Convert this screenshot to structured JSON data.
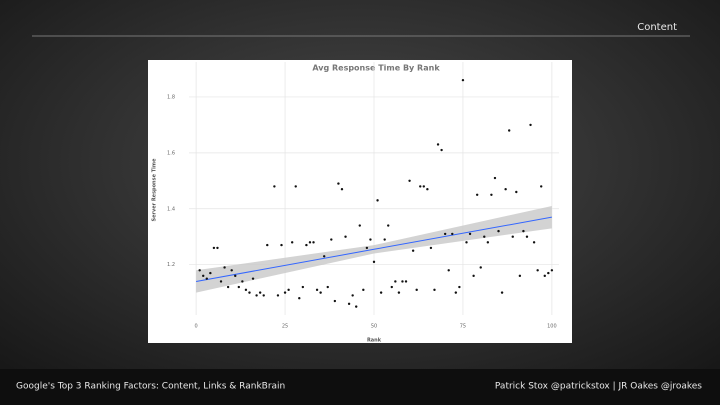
{
  "header": "Content",
  "footer_left": "Google's Top 3 Ranking Factors: Content, Links & RankBrain",
  "footer_right": "Patrick Stox @patrickstox  |  JR Oakes @jroakes",
  "chart_data": {
    "type": "scatter",
    "title": "Avg Response Time By Rank",
    "x_label": "Rank",
    "y_label": "Server Response Time",
    "series": [
      {
        "name": "points",
        "color": "#111111",
        "x": [
          1,
          2,
          3,
          4,
          5,
          6,
          7,
          8,
          9,
          10,
          11,
          12,
          13,
          14,
          15,
          16,
          17,
          18,
          19,
          20,
          22,
          23,
          24,
          25,
          26,
          27,
          28,
          29,
          30,
          31,
          32,
          33,
          34,
          35,
          36,
          37,
          38,
          39,
          40,
          41,
          42,
          43,
          44,
          45,
          46,
          47,
          48,
          49,
          50,
          51,
          52,
          53,
          54,
          55,
          56,
          57,
          58,
          59,
          60,
          61,
          62,
          63,
          64,
          65,
          66,
          67,
          68,
          69,
          70,
          71,
          72,
          73,
          74,
          75,
          76,
          77,
          78,
          79,
          80,
          81,
          82,
          83,
          84,
          85,
          86,
          87,
          88,
          89,
          90,
          91,
          92,
          93,
          94,
          95,
          96,
          97,
          98,
          99,
          100
        ],
        "values": [
          1.18,
          1.16,
          1.15,
          1.17,
          1.26,
          1.26,
          1.14,
          1.19,
          1.12,
          1.18,
          1.16,
          1.12,
          1.14,
          1.11,
          1.1,
          1.15,
          1.09,
          1.1,
          1.09,
          1.27,
          1.48,
          1.09,
          1.27,
          1.1,
          1.11,
          1.28,
          1.48,
          1.08,
          1.12,
          1.27,
          1.28,
          1.28,
          1.11,
          1.1,
          1.23,
          1.12,
          1.29,
          1.07,
          1.49,
          1.47,
          1.3,
          1.06,
          1.09,
          1.05,
          1.34,
          1.11,
          1.26,
          1.29,
          1.21,
          1.43,
          1.1,
          1.29,
          1.34,
          1.12,
          1.14,
          1.1,
          1.14,
          1.14,
          1.5,
          1.25,
          1.11,
          1.48,
          1.48,
          1.47,
          1.26,
          1.11,
          1.63,
          1.61,
          1.31,
          1.18,
          1.31,
          1.1,
          1.12,
          1.86,
          1.28,
          1.31,
          1.16,
          1.45,
          1.19,
          1.3,
          1.28,
          1.45,
          1.51,
          1.32,
          1.1,
          1.47,
          1.68,
          1.3,
          1.46,
          1.16,
          1.32,
          1.3,
          1.7,
          1.28,
          1.18,
          1.48,
          1.16,
          1.17,
          1.18
        ]
      }
    ],
    "trend": {
      "color": "#3366ff",
      "band_color": "#c8c8c8",
      "x": [
        0,
        50,
        100
      ],
      "values": [
        1.14,
        1.255,
        1.37
      ],
      "lower": [
        1.1,
        1.24,
        1.33
      ],
      "upper": [
        1.18,
        1.27,
        1.41
      ]
    },
    "xlim": [
      -2,
      102
    ],
    "xticks": [
      0,
      25,
      50,
      75,
      100
    ],
    "ylim": [
      1.02,
      1.925
    ],
    "yticks": [
      1.2,
      1.4,
      1.6,
      1.8
    ],
    "grid": true
  }
}
